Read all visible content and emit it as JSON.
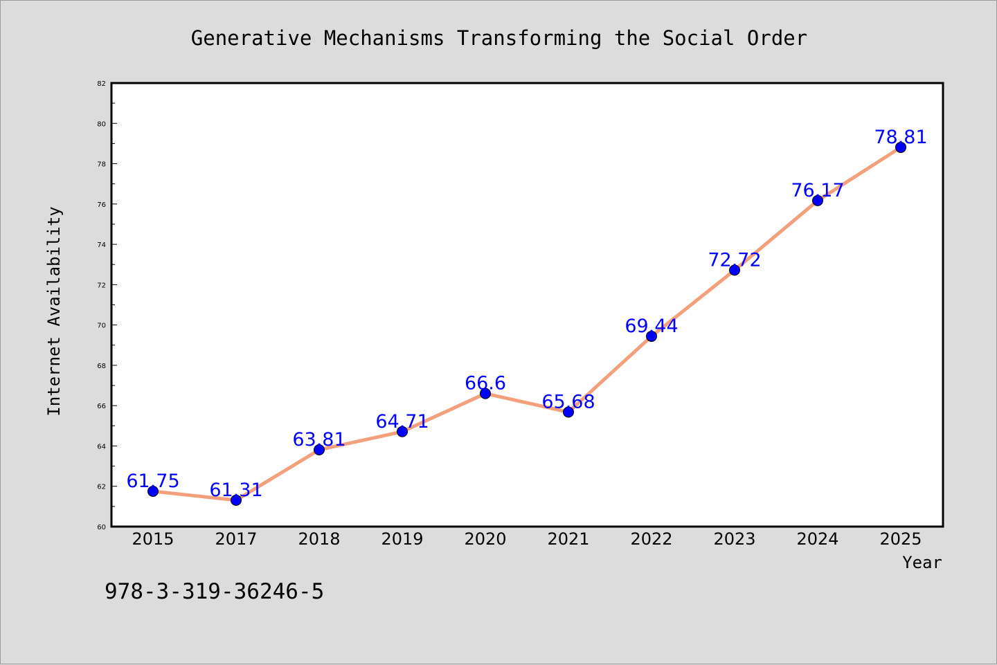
{
  "chart_data": {
    "type": "line",
    "title": "Generative Mechanisms Transforming the Social Order",
    "xlabel": "Year",
    "ylabel": "Internet Availability",
    "categories": [
      "2015",
      "2017",
      "2018",
      "2019",
      "2020",
      "2021",
      "2022",
      "2023",
      "2024",
      "2025"
    ],
    "series": [
      {
        "values": [
          61.75,
          61.31,
          63.81,
          64.71,
          66.6,
          65.68,
          69.44,
          72.72,
          76.17,
          78.81
        ],
        "labels": [
          "61.75",
          "61.31",
          "63.81",
          "64.71",
          "66.6",
          "65.68",
          "69.44",
          "72.72",
          "76.17",
          "78.81"
        ],
        "line_color": "#f4a07c",
        "marker_color": "#0000ff"
      }
    ],
    "ylim": [
      60,
      82
    ],
    "yticks": [
      "60",
      "62",
      "64",
      "66",
      "68",
      "70",
      "72",
      "74",
      "76",
      "78",
      "80",
      "82"
    ],
    "grid": false,
    "legend": "none"
  },
  "footer": {
    "isbn": "978-3-319-36246-5"
  }
}
